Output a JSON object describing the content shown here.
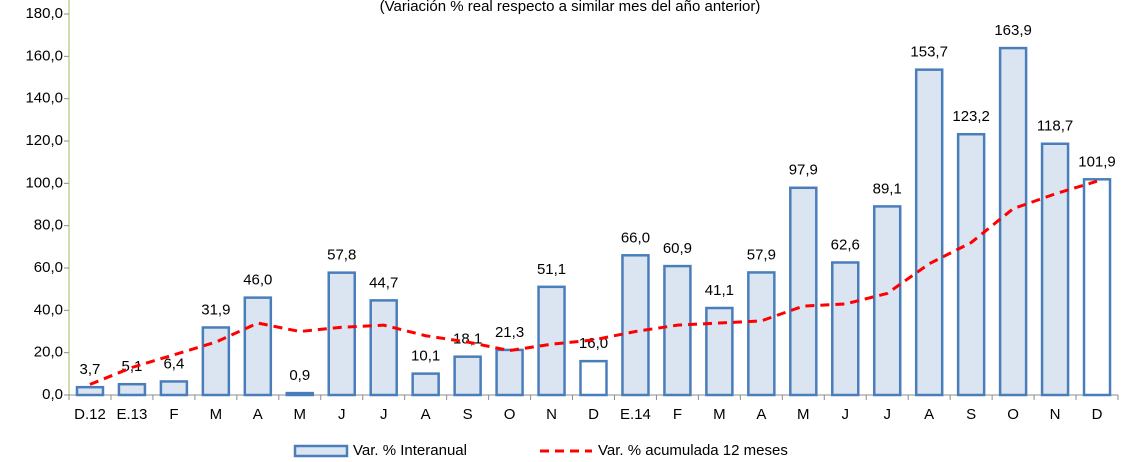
{
  "chart_data": {
    "type": "bar",
    "title": "(Variación % real respecto a similar mes del año anterior)",
    "categories": [
      "D.12",
      "E.13",
      "F",
      "M",
      "A",
      "M",
      "J",
      "J",
      "A",
      "S",
      "O",
      "N",
      "D",
      "E.14",
      "F",
      "M",
      "A",
      "M",
      "J",
      "J",
      "A",
      "S",
      "O",
      "N",
      "D"
    ],
    "series": [
      {
        "name": "Var. % Interanual",
        "type": "bar",
        "color": "#4a7ebb",
        "fill": "#dbe5f1",
        "colors": [
          "#dbe5f1",
          "#dbe5f1",
          "#dbe5f1",
          "#dbe5f1",
          "#dbe5f1",
          "#dbe5f1",
          "#dbe5f1",
          "#dbe5f1",
          "#dbe5f1",
          "#dbe5f1",
          "#dbe5f1",
          "#dbe5f1",
          "#ffffff",
          "#dbe5f1",
          "#dbe5f1",
          "#dbe5f1",
          "#dbe5f1",
          "#dbe5f1",
          "#dbe5f1",
          "#dbe5f1",
          "#dbe5f1",
          "#dbe5f1",
          "#dbe5f1",
          "#dbe5f1",
          "#ffffff"
        ],
        "values": [
          3.7,
          5.1,
          6.4,
          31.9,
          46.0,
          0.9,
          57.8,
          44.7,
          10.1,
          18.1,
          21.3,
          51.1,
          16.0,
          66.0,
          60.9,
          41.1,
          57.9,
          97.9,
          62.6,
          89.1,
          153.7,
          123.2,
          163.9,
          118.7,
          101.9
        ],
        "value_labels": [
          "3,7",
          "5,1",
          "6,4",
          "31,9",
          "46,0",
          "0,9",
          "57,8",
          "44,7",
          "10,1",
          "18,1",
          "21,3",
          "51,1",
          "16,0",
          "66,0",
          "60,9",
          "41,1",
          "57,9",
          "97,9",
          "62,6",
          "89,1",
          "153,7",
          "123,2",
          "163,9",
          "118,7",
          "101,9"
        ]
      },
      {
        "name": "Var. % acumulada 12 meses",
        "type": "line",
        "color": "#ff0000",
        "dashed": true,
        "values": [
          5,
          13,
          19,
          25,
          34,
          30,
          32,
          33,
          28,
          25,
          21,
          24,
          26,
          30,
          33,
          34,
          35,
          42,
          43,
          48,
          62,
          72,
          88,
          95,
          101
        ]
      }
    ],
    "ylim": [
      0,
      180
    ],
    "yticks": [
      {
        "value": 0,
        "label": "0,0"
      },
      {
        "value": 20,
        "label": "20,0"
      },
      {
        "value": 40,
        "label": "40,0"
      },
      {
        "value": 60,
        "label": "60,0"
      },
      {
        "value": 80,
        "label": "80,0"
      },
      {
        "value": 100,
        "label": "100,0"
      },
      {
        "value": 120,
        "label": "120,0"
      },
      {
        "value": 140,
        "label": "140,0"
      },
      {
        "value": 160,
        "label": "160,0"
      },
      {
        "value": 180,
        "label": "180,0"
      }
    ],
    "legend": "bottom"
  }
}
